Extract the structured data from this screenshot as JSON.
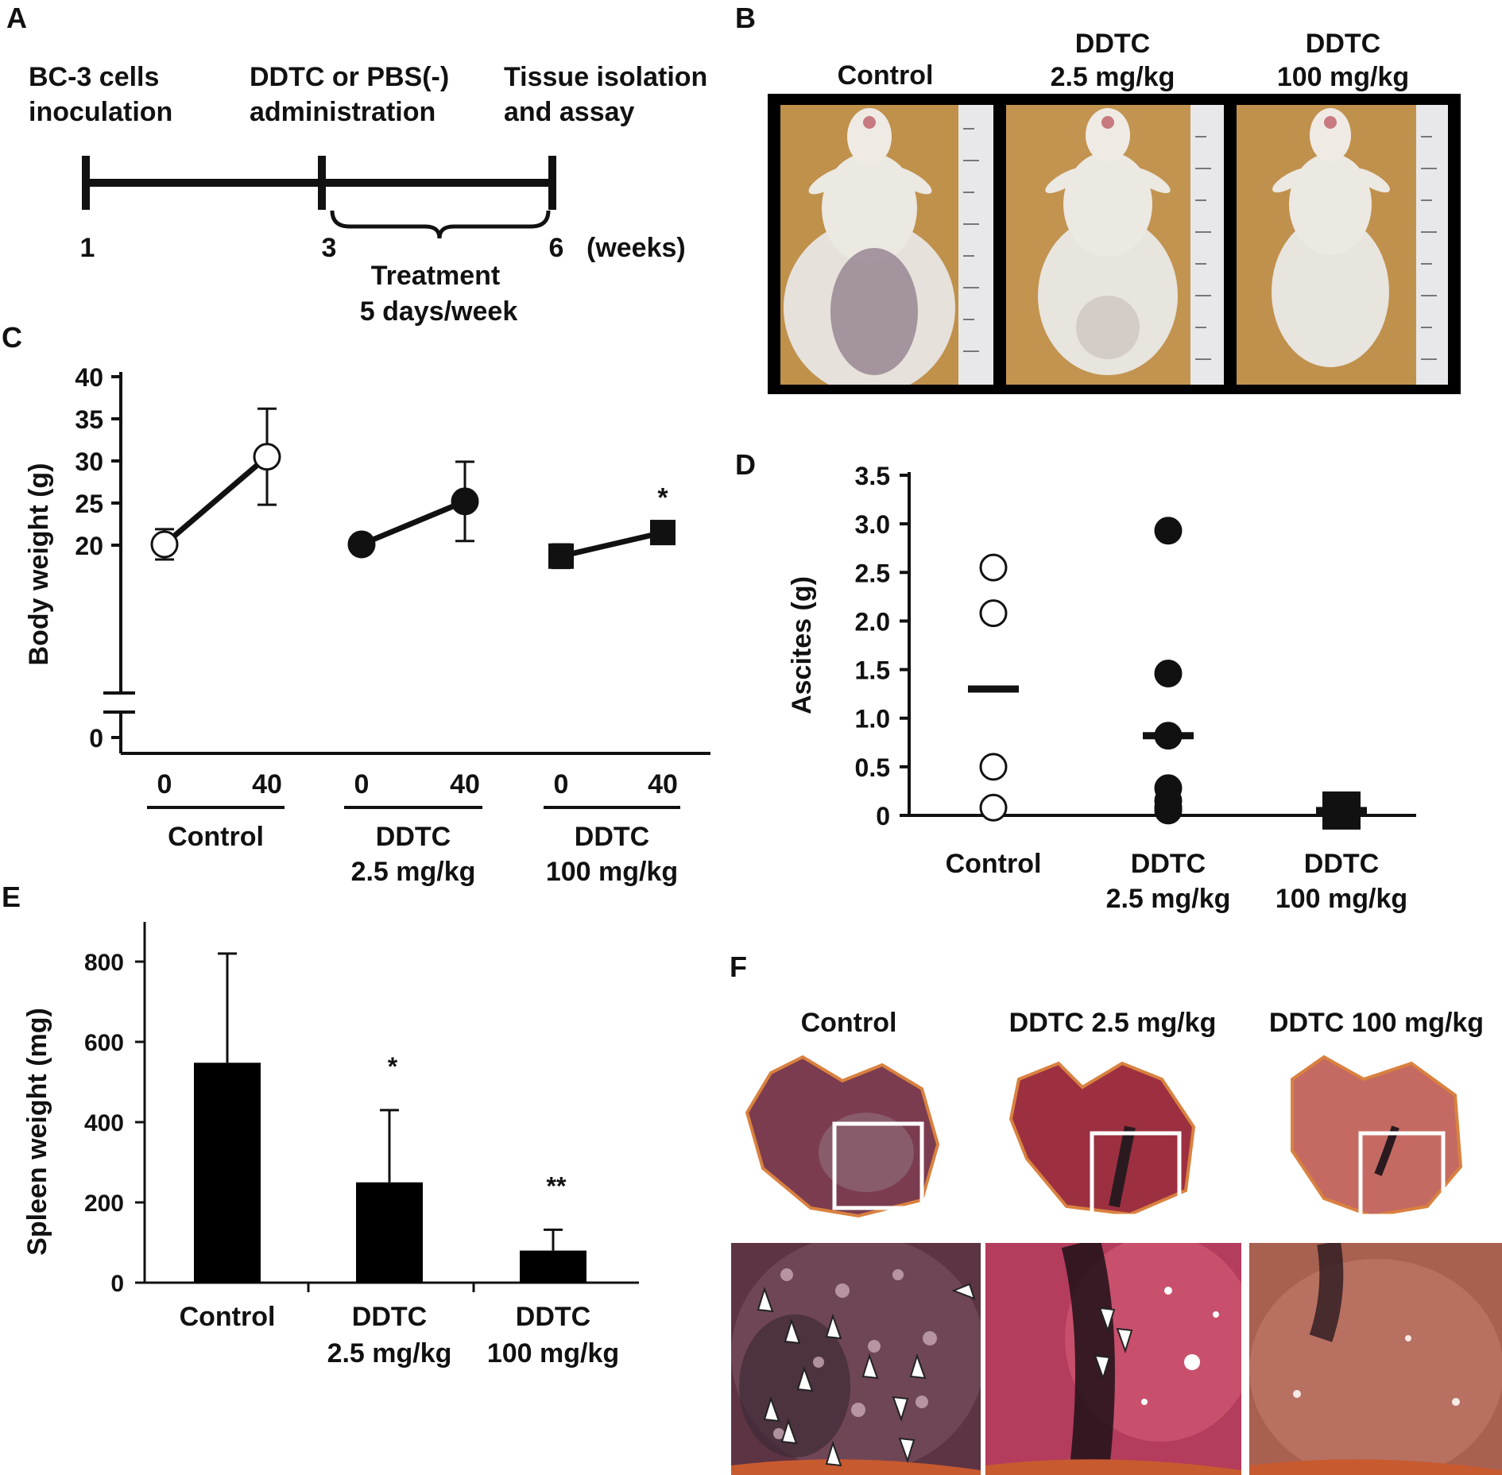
{
  "panel_labels": {
    "a": "A",
    "b": "B",
    "c": "C",
    "d": "D",
    "e": "E",
    "f": "F"
  },
  "panel_a": {
    "events": [
      {
        "line1": "BC-3 cells",
        "line2": "inoculation"
      },
      {
        "line1": "DDTC or PBS(-)",
        "line2": "administration"
      },
      {
        "line1": "Tissue isolation",
        "line2": "and assay"
      }
    ],
    "ticks": [
      "1",
      "3",
      "6"
    ],
    "unit": "(weeks)",
    "treatment": {
      "line1": "Treatment",
      "line2": "5 days/week"
    }
  },
  "panel_b": {
    "groups": [
      {
        "line1": "",
        "line2": "Control"
      },
      {
        "line1": "DDTC",
        "line2": "2.5 mg/kg"
      },
      {
        "line1": "DDTC",
        "line2": "100 mg/kg"
      }
    ]
  },
  "panel_f": {
    "groups": [
      "Control",
      "DDTC 2.5 mg/kg",
      "DDTC 100 mg/kg"
    ]
  },
  "chart_data": [
    {
      "panel": "C",
      "type": "line",
      "ylabel": "Body weight (g)",
      "ylim": [
        0,
        40
      ],
      "yticks": [
        "0",
        "20",
        "25",
        "30",
        "35",
        "40"
      ],
      "axis_break": true,
      "categories": [
        "0",
        "40"
      ],
      "groups": [
        {
          "line1": "Control",
          "line2": "",
          "marker": "open-circle",
          "values": [
            20.1,
            30.5
          ],
          "errors": [
            1.8,
            5.7
          ],
          "annotation": ""
        },
        {
          "line1": "DDTC",
          "line2": "2.5 mg/kg",
          "marker": "filled-circle",
          "values": [
            20.1,
            25.2
          ],
          "errors": [
            1.1,
            4.7
          ],
          "annotation": ""
        },
        {
          "line1": "DDTC",
          "line2": "100 mg/kg",
          "marker": "filled-square",
          "values": [
            18.7,
            21.5
          ],
          "errors": [
            1.4,
            1.0
          ],
          "annotation": "*"
        }
      ]
    },
    {
      "panel": "D",
      "type": "scatter",
      "ylabel": "Ascites (g)",
      "ylim": [
        0,
        3.5
      ],
      "yticks": [
        "0",
        "0.5",
        "1.0",
        "1.5",
        "2.0",
        "2.5",
        "3.0",
        "3.5"
      ],
      "groups": [
        {
          "line1": "Control",
          "line2": "",
          "marker": "open-circle",
          "points": [
            2.55,
            2.08,
            0.5,
            0.08
          ],
          "mean": 1.3
        },
        {
          "line1": "DDTC",
          "line2": "2.5 mg/kg",
          "marker": "filled-circle",
          "points": [
            2.93,
            1.46,
            0.82,
            0.28,
            0.15,
            0.08,
            0.05
          ],
          "mean": 0.82
        },
        {
          "line1": "DDTC",
          "line2": "100 mg/kg",
          "marker": "filled-square",
          "points": [
            0.05
          ],
          "mean": 0.05
        }
      ]
    },
    {
      "panel": "E",
      "type": "bar",
      "ylabel": "Spleen weight (mg)",
      "ylim": [
        0,
        800
      ],
      "yticks": [
        "0",
        "200",
        "400",
        "600",
        "800"
      ],
      "categories": [
        {
          "line1": "Control",
          "line2": ""
        },
        {
          "line1": "DDTC",
          "line2": "2.5 mg/kg"
        },
        {
          "line1": "DDTC",
          "line2": "100 mg/kg"
        }
      ],
      "values": [
        548,
        250,
        80
      ],
      "errors": [
        272,
        180,
        52
      ],
      "annotations": [
        "",
        "*",
        "**"
      ]
    }
  ],
  "colors": {
    "ink": "#111111",
    "wood": "#b98a45",
    "ruler": "#e8e8ea",
    "fur": "#e6e1db",
    "tissue": "#8a3a4a",
    "tissue_light": "#c3556a"
  }
}
